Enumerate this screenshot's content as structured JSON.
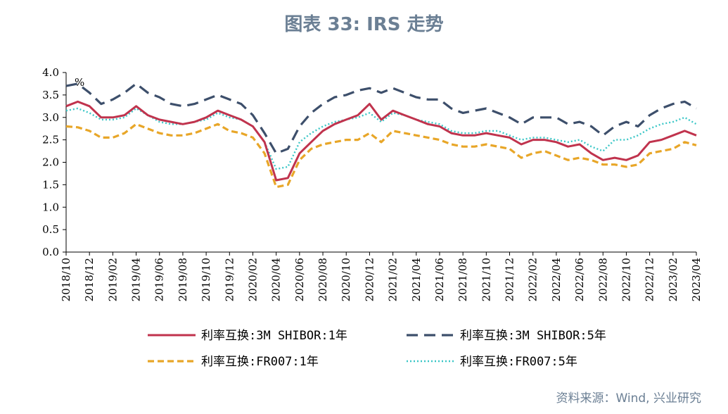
{
  "title": "图表 33: IRS 走势",
  "source": "资料来源：Wind, 兴业研究",
  "chart_data": {
    "type": "line",
    "title": "图表 33: IRS 走势",
    "ylabel": "%",
    "ylim": [
      0,
      4.0
    ],
    "yticks": [
      "0.0",
      "0.5",
      "1.0",
      "1.5",
      "2.0",
      "2.5",
      "3.0",
      "3.5",
      "4.0"
    ],
    "xticks": [
      "2018/10",
      "2018/12",
      "2019/02",
      "2019/04",
      "2019/06",
      "2019/08",
      "2019/10",
      "2019/12",
      "2020/02",
      "2020/04",
      "2020/06",
      "2020/08",
      "2020/10",
      "2020/12",
      "2021/02",
      "2021/04",
      "2021/06",
      "2021/08",
      "2021/10",
      "2021/12",
      "2022/02",
      "2022/04",
      "2022/06",
      "2022/08",
      "2022/10",
      "2022/12",
      "2023/02",
      "2023/04"
    ],
    "x": [
      "2018/10",
      "2018/11",
      "2018/12",
      "2019/01",
      "2019/02",
      "2019/03",
      "2019/04",
      "2019/05",
      "2019/06",
      "2019/07",
      "2019/08",
      "2019/09",
      "2019/10",
      "2019/11",
      "2019/12",
      "2020/01",
      "2020/02",
      "2020/03",
      "2020/04",
      "2020/05",
      "2020/06",
      "2020/07",
      "2020/08",
      "2020/09",
      "2020/10",
      "2020/11",
      "2020/12",
      "2021/01",
      "2021/02",
      "2021/03",
      "2021/04",
      "2021/05",
      "2021/06",
      "2021/07",
      "2021/08",
      "2021/09",
      "2021/10",
      "2021/11",
      "2021/12",
      "2022/01",
      "2022/02",
      "2022/03",
      "2022/04",
      "2022/05",
      "2022/06",
      "2022/07",
      "2022/08",
      "2022/09",
      "2022/10",
      "2022/11",
      "2022/12",
      "2023/01",
      "2023/02",
      "2023/03",
      "2023/04"
    ],
    "legend_position": "bottom",
    "series": [
      {
        "name": "利率互换:3M SHIBOR:1年",
        "color": "#c0334d",
        "dash": "solid",
        "values": [
          3.25,
          3.35,
          3.25,
          3.0,
          3.0,
          3.05,
          3.25,
          3.05,
          2.95,
          2.9,
          2.85,
          2.9,
          3.0,
          3.15,
          3.05,
          2.95,
          2.8,
          2.45,
          1.6,
          1.65,
          2.2,
          2.45,
          2.7,
          2.85,
          2.95,
          3.05,
          3.3,
          2.95,
          3.15,
          3.05,
          2.95,
          2.85,
          2.8,
          2.65,
          2.6,
          2.6,
          2.65,
          2.6,
          2.55,
          2.4,
          2.5,
          2.5,
          2.45,
          2.35,
          2.4,
          2.2,
          2.05,
          2.1,
          2.05,
          2.15,
          2.45,
          2.5,
          2.6,
          2.7,
          2.6
        ]
      },
      {
        "name": "利率互换:3M SHIBOR:5年",
        "color": "#3d4f6b",
        "dash": "long",
        "values": [
          3.7,
          3.75,
          3.55,
          3.3,
          3.4,
          3.55,
          3.75,
          3.55,
          3.45,
          3.3,
          3.25,
          3.3,
          3.4,
          3.5,
          3.4,
          3.3,
          3.05,
          2.65,
          2.2,
          2.3,
          2.8,
          3.1,
          3.3,
          3.45,
          3.5,
          3.6,
          3.65,
          3.55,
          3.65,
          3.55,
          3.45,
          3.4,
          3.4,
          3.2,
          3.1,
          3.15,
          3.2,
          3.1,
          3.0,
          2.85,
          3.0,
          3.0,
          3.0,
          2.85,
          2.9,
          2.8,
          2.6,
          2.8,
          2.9,
          2.8,
          3.05,
          3.2,
          3.3,
          3.35,
          3.2
        ]
      },
      {
        "name": "利率互换:FR007:1年",
        "color": "#e8a628",
        "dash": "medium",
        "values": [
          2.8,
          2.78,
          2.7,
          2.55,
          2.55,
          2.65,
          2.85,
          2.75,
          2.65,
          2.6,
          2.6,
          2.65,
          2.75,
          2.85,
          2.7,
          2.65,
          2.55,
          2.2,
          1.45,
          1.5,
          2.05,
          2.3,
          2.4,
          2.45,
          2.5,
          2.5,
          2.65,
          2.45,
          2.7,
          2.65,
          2.6,
          2.55,
          2.5,
          2.4,
          2.35,
          2.35,
          2.4,
          2.35,
          2.3,
          2.1,
          2.2,
          2.25,
          2.15,
          2.05,
          2.1,
          2.05,
          1.95,
          1.95,
          1.9,
          1.95,
          2.2,
          2.25,
          2.3,
          2.45,
          2.38
        ]
      },
      {
        "name": "利率互换:FR007:5年",
        "color": "#3cc7c7",
        "dash": "dotted",
        "values": [
          3.15,
          3.2,
          3.1,
          2.95,
          2.95,
          3.0,
          3.2,
          3.05,
          2.9,
          2.85,
          2.85,
          2.9,
          2.95,
          3.1,
          3.0,
          2.95,
          2.8,
          2.45,
          1.85,
          1.9,
          2.45,
          2.65,
          2.8,
          2.9,
          2.95,
          3.0,
          3.1,
          2.9,
          3.1,
          3.05,
          2.95,
          2.9,
          2.85,
          2.7,
          2.65,
          2.65,
          2.7,
          2.7,
          2.6,
          2.5,
          2.55,
          2.55,
          2.5,
          2.45,
          2.5,
          2.35,
          2.25,
          2.5,
          2.5,
          2.6,
          2.75,
          2.85,
          2.9,
          3.0,
          2.85
        ]
      }
    ]
  }
}
